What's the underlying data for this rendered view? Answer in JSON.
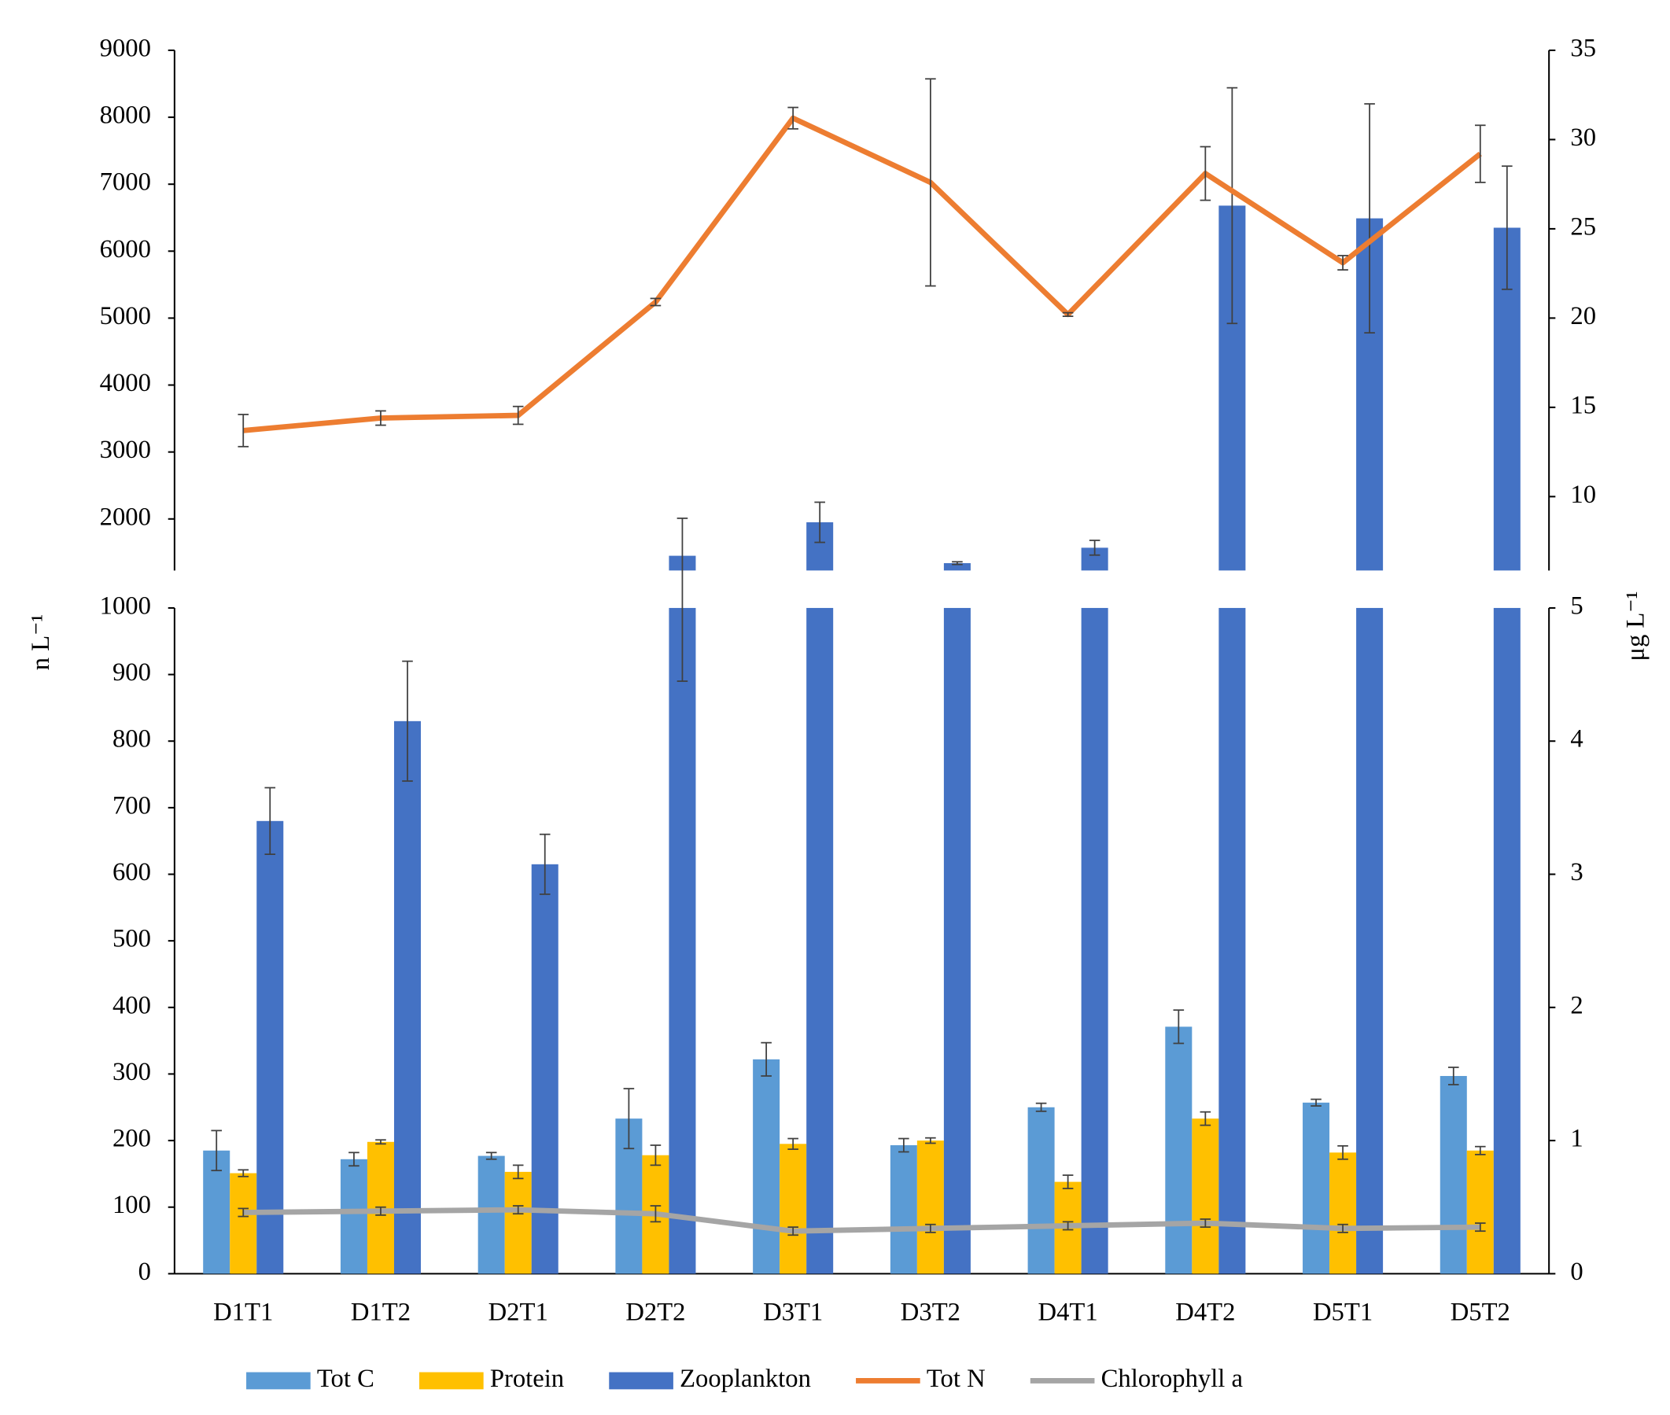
{
  "chart_data": {
    "type": "bar",
    "categories": [
      "D1T1",
      "D1T2",
      "D2T1",
      "D2T2",
      "D3T1",
      "D3T2",
      "D4T1",
      "D4T2",
      "D5T1",
      "D5T2"
    ],
    "ylabel": "n L⁻¹",
    "y2label": "μg L⁻¹",
    "ylim": [
      0,
      9000
    ],
    "ybreak": [
      1000,
      1230
    ],
    "yticks": [
      0,
      100,
      200,
      300,
      400,
      500,
      600,
      700,
      800,
      900,
      1000,
      2000,
      3000,
      4000,
      5000,
      6000,
      7000,
      8000,
      9000
    ],
    "y2lim": [
      0,
      35
    ],
    "y2break": [
      5,
      5.86
    ],
    "y2ticks": [
      0,
      1,
      2,
      3,
      4,
      5,
      10,
      15,
      20,
      25,
      30,
      35
    ],
    "legend": "bottom",
    "series": [
      {
        "name": "Tot C",
        "type": "bar",
        "axis": "y",
        "color": "#5b9bd5",
        "values": [
          185,
          172,
          177,
          233,
          322,
          193,
          250,
          371,
          257,
          297
        ],
        "errors": [
          30,
          10,
          5,
          45,
          25,
          10,
          6,
          25,
          5,
          13
        ]
      },
      {
        "name": "Protein",
        "type": "bar",
        "axis": "y",
        "color": "#ffc000",
        "values": [
          151,
          198,
          153,
          178,
          195,
          200,
          138,
          233,
          182,
          185
        ],
        "errors": [
          5,
          3,
          10,
          15,
          8,
          4,
          10,
          10,
          10,
          6
        ]
      },
      {
        "name": "Zooplankton",
        "type": "bar",
        "axis": "y",
        "color": "#4472c4",
        "values": [
          680,
          830,
          615,
          1450,
          1950,
          1340,
          1570,
          6680,
          6490,
          6350
        ],
        "errors": [
          50,
          90,
          45,
          560,
          300,
          20,
          110,
          1760,
          1710,
          920
        ]
      },
      {
        "name": "Tot N",
        "type": "line",
        "axis": "y2",
        "color": "#ed7d31",
        "values": [
          13.7,
          14.4,
          14.55,
          20.9,
          31.2,
          27.6,
          20.2,
          28.1,
          23.1,
          29.2
        ],
        "errors": [
          0.9,
          0.4,
          0.5,
          0.2,
          0.6,
          5.8,
          0.1,
          1.5,
          0.4,
          1.6
        ]
      },
      {
        "name": "Chlorophyll a",
        "type": "line",
        "axis": "y2",
        "color": "#a5a5a5",
        "values": [
          0.46,
          0.47,
          0.48,
          0.45,
          0.32,
          0.34,
          0.36,
          0.38,
          0.34,
          0.35
        ],
        "errors": [
          0.03,
          0.03,
          0.03,
          0.06,
          0.03,
          0.03,
          0.03,
          0.03,
          0.03,
          0.03
        ]
      }
    ]
  }
}
